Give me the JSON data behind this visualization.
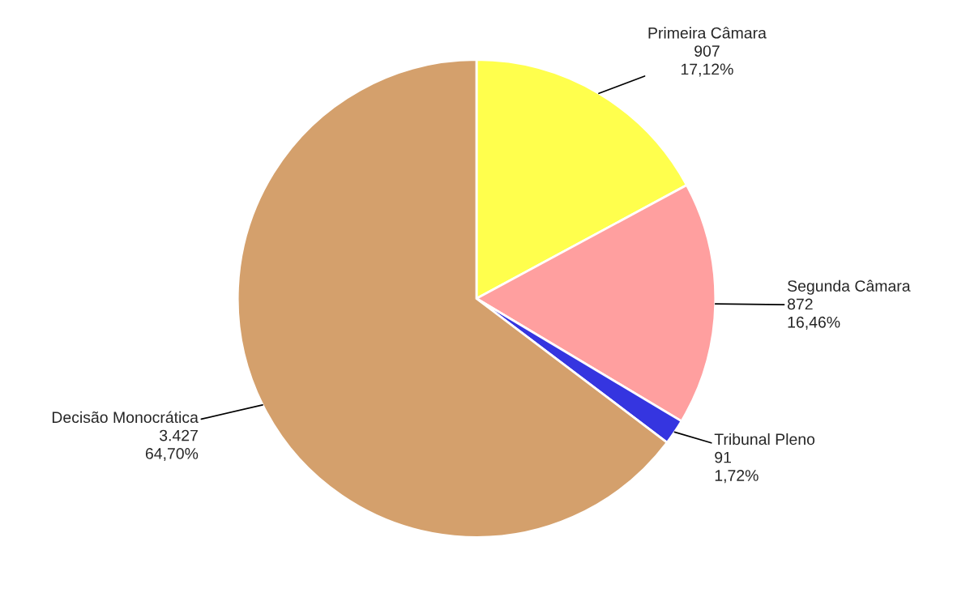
{
  "chart_data": {
    "type": "pie",
    "categories": [
      "Primeira Câmara",
      "Segunda Câmara",
      "Tribunal Pleno",
      "Decisão Monocrática"
    ],
    "values": [
      907,
      872,
      91,
      3427
    ],
    "colors": [
      "#ffff4d",
      "#ff9f9f",
      "#3535e0",
      "#d4a06c"
    ],
    "value_labels": [
      "907\n17,12%",
      "872\n16,46%",
      "91\n1,72%",
      "3.427\n64,70%"
    ]
  }
}
